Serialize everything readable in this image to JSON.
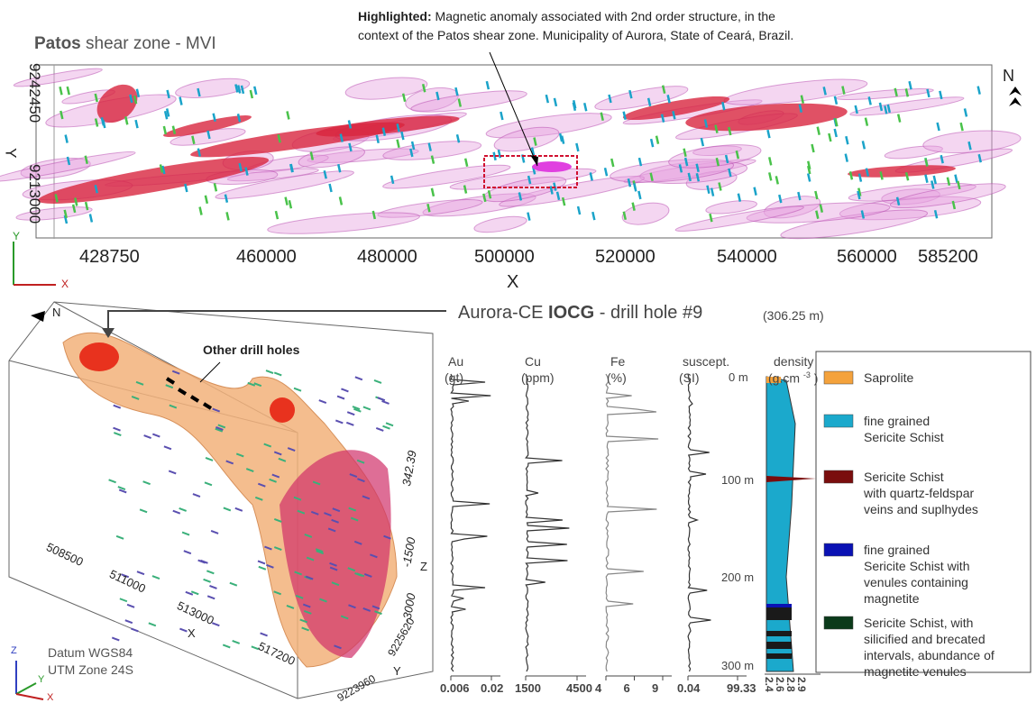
{
  "top_panel": {
    "title_bold": "Patos",
    "title_rest": "shear zone - MVI",
    "y_ticks": [
      "9242450",
      "9213000"
    ],
    "y_label": "Y",
    "x_ticks": [
      "428750",
      "460000",
      "480000",
      "500000",
      "520000",
      "540000",
      "560000",
      "585200"
    ],
    "x_label": "X",
    "north": "N",
    "triad_y": "Y",
    "triad_x": "X"
  },
  "highlight": {
    "label": "Highlighted:",
    "line1": "Magnetic anomaly associated with 2nd order structure, in the",
    "line2": "context of the Patos shear zone. Municipality of Aurora, State of Ceará, Brazil."
  },
  "model_panel": {
    "north": "N",
    "callout": "Other drill holes",
    "x_ticks": [
      "508500",
      "511000",
      "513000",
      "517200"
    ],
    "x_label": "X",
    "z_ticks": [
      "342.39",
      "-1500",
      "-3000"
    ],
    "z_label": "Z",
    "y_ticks": [
      "9225620",
      "9223960"
    ],
    "y_label": "Y",
    "datum": "Datum WGS84",
    "zone": "UTM Zone 24S",
    "triad_z": "Z",
    "triad_y": "Y",
    "triad_x": "X"
  },
  "drill_hole": {
    "title_start": "Aurora-CE",
    "title_bold": "IOCG",
    "title_end": "- drill hole #9",
    "length": "(306.25 m)",
    "columns": [
      {
        "name": "Au",
        "unit": "(gt)",
        "ticks": [
          "0.006",
          "0.02"
        ]
      },
      {
        "name": "Cu",
        "unit": "(ppm)",
        "ticks": [
          "1500",
          "4500"
        ]
      },
      {
        "name": "Fe",
        "unit": "(%)",
        "ticks": [
          "4",
          "6",
          "9"
        ]
      },
      {
        "name": "suscept.",
        "unit": "(SI)",
        "ticks": [
          "0.04",
          "99.33"
        ]
      }
    ],
    "density": {
      "name": "density",
      "unit_start": "(g.cm",
      "unit_sup": "-3",
      "unit_end": ")",
      "ticks": [
        "2.4",
        "2.6",
        "2.8",
        "2.9"
      ]
    },
    "depths": [
      "0 m",
      "100 m",
      "200 m",
      "300 m"
    ],
    "legend": [
      {
        "color": "#f4a23c",
        "lines": [
          "Saprolite"
        ]
      },
      {
        "color": "#1ba9cc",
        "lines": [
          "fine grained",
          "Sericite Schist"
        ]
      },
      {
        "color": "#7a0d0d",
        "lines": [
          "Sericite Schist",
          "with quartz-feldspar",
          "veins and suplhydes"
        ]
      },
      {
        "color": "#0a12b4",
        "lines": [
          "fine grained",
          "Sericite Schist with",
          "venules containing",
          "magnetite"
        ]
      },
      {
        "color": "#0b3a1a",
        "lines": [
          "Sericite Schist, with",
          "silicified and brecated",
          "intervals, abundance of",
          "magnetite venules"
        ]
      }
    ]
  }
}
